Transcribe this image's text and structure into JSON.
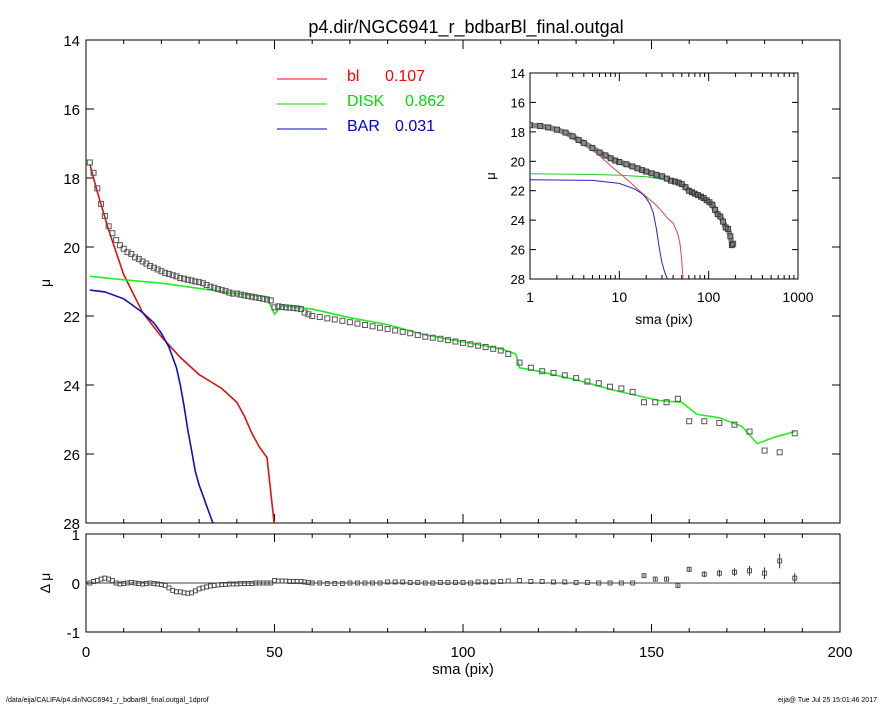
{
  "chart_data": {
    "type": "line",
    "title": "p4.dir/NGC6941_r_bdbarBl_final.outgal",
    "main": {
      "xlabel": "",
      "ylabel": "μ",
      "xlim": [
        0,
        200
      ],
      "ylim": [
        28,
        14
      ],
      "yticks": [
        "14",
        "16",
        "18",
        "20",
        "22",
        "24",
        "26",
        "28"
      ],
      "legend": [
        {
          "name": "bl",
          "value": "0.107",
          "color": "#ff0000"
        },
        {
          "name": "DISK",
          "value": "0.862",
          "color": "#00dd00"
        },
        {
          "name": "BAR",
          "value": "0.031",
          "color": "#0000cc"
        }
      ],
      "series": [
        {
          "name": "bl",
          "color": "#dd1111",
          "x": [
            1,
            3,
            6,
            10,
            15,
            20,
            25,
            30,
            33,
            36,
            38,
            40,
            42,
            44,
            45,
            46,
            48,
            50
          ],
          "y": [
            17.6,
            18.4,
            19.5,
            20.8,
            21.9,
            22.6,
            23.2,
            23.7,
            23.9,
            24.1,
            24.3,
            24.5,
            24.9,
            25.4,
            25.6,
            25.8,
            26.1,
            28.1
          ]
        },
        {
          "name": "DISK",
          "color": "#22ee22",
          "x": [
            1,
            10,
            20,
            30,
            40,
            48,
            50,
            52,
            60,
            70,
            80,
            90,
            100,
            110,
            114,
            115,
            120,
            130,
            140,
            148,
            152,
            158,
            162,
            168,
            174,
            178,
            183,
            188
          ],
          "y": [
            20.85,
            20.95,
            21.05,
            21.2,
            21.35,
            21.45,
            21.95,
            21.7,
            21.8,
            22.05,
            22.25,
            22.55,
            22.75,
            22.95,
            23.1,
            23.5,
            23.6,
            23.85,
            24.15,
            24.35,
            24.45,
            24.5,
            24.85,
            24.95,
            25.2,
            25.7,
            25.5,
            25.35
          ]
        },
        {
          "name": "BAR",
          "color": "#1111bb",
          "x": [
            1,
            5,
            10,
            15,
            18,
            20,
            22,
            24,
            25,
            26,
            27,
            28,
            29,
            30,
            31,
            32,
            33,
            34
          ],
          "y": [
            21.25,
            21.3,
            21.5,
            21.9,
            22.2,
            22.5,
            22.9,
            23.5,
            24.0,
            24.6,
            25.3,
            25.9,
            26.5,
            26.9,
            27.2,
            27.5,
            27.8,
            28.1
          ]
        },
        {
          "name": "data",
          "marker": "square",
          "x": [
            1,
            2,
            3,
            4,
            5,
            6,
            7,
            8,
            9,
            10,
            11,
            12,
            13,
            14,
            15,
            16,
            17,
            18,
            19,
            20,
            21,
            22,
            23,
            24,
            25,
            26,
            27,
            28,
            29,
            30,
            31,
            32,
            33,
            34,
            35,
            36,
            37,
            38,
            39,
            40,
            41,
            42,
            43,
            44,
            45,
            46,
            47,
            48,
            49,
            50,
            51,
            52,
            53,
            54,
            55,
            56,
            57,
            58,
            59,
            60,
            62,
            64,
            66,
            68,
            70,
            72,
            74,
            76,
            78,
            80,
            82,
            84,
            86,
            88,
            90,
            92,
            94,
            96,
            98,
            100,
            102,
            104,
            106,
            108,
            110,
            112,
            115,
            118,
            121,
            124,
            127,
            130,
            133,
            136,
            139,
            142,
            145,
            148,
            151,
            154,
            157,
            160,
            164,
            168,
            172,
            176,
            180,
            184,
            188
          ],
          "y": [
            17.55,
            17.85,
            18.3,
            18.75,
            19.1,
            19.4,
            19.6,
            19.8,
            19.95,
            20.05,
            20.15,
            20.2,
            20.3,
            20.35,
            20.42,
            20.48,
            20.55,
            20.6,
            20.65,
            20.7,
            20.75,
            20.78,
            20.82,
            20.85,
            20.9,
            20.92,
            20.95,
            20.97,
            21.0,
            21.02,
            21.05,
            21.1,
            21.15,
            21.18,
            21.22,
            21.25,
            21.28,
            21.32,
            21.35,
            21.35,
            21.38,
            21.4,
            21.42,
            21.44,
            21.46,
            21.48,
            21.5,
            21.52,
            21.55,
            21.75,
            21.72,
            21.74,
            21.75,
            21.76,
            21.77,
            21.78,
            21.8,
            21.9,
            21.95,
            22.0,
            22.03,
            22.07,
            22.1,
            22.14,
            22.18,
            22.22,
            22.26,
            22.3,
            22.34,
            22.38,
            22.42,
            22.46,
            22.5,
            22.55,
            22.6,
            22.63,
            22.66,
            22.7,
            22.74,
            22.78,
            22.82,
            22.86,
            22.9,
            22.95,
            23.0,
            23.1,
            23.35,
            23.5,
            23.6,
            23.65,
            23.72,
            23.8,
            23.9,
            23.95,
            24.05,
            24.1,
            24.2,
            24.5,
            24.5,
            24.5,
            24.4,
            25.05,
            25.05,
            25.1,
            25.15,
            25.35,
            25.9,
            25.95,
            25.4
          ]
        }
      ]
    },
    "residual": {
      "xlabel": "sma (pix)",
      "ylabel": "Δ μ",
      "xlim": [
        0,
        200
      ],
      "ylim": [
        -1,
        1
      ],
      "xticks": [
        "0",
        "50",
        "100",
        "150",
        "200"
      ],
      "yticks": [
        "-1",
        "0",
        "1"
      ],
      "x": [
        1,
        2,
        3,
        4,
        5,
        6,
        7,
        8,
        9,
        10,
        11,
        12,
        13,
        14,
        15,
        16,
        17,
        18,
        19,
        20,
        21,
        22,
        23,
        24,
        25,
        26,
        27,
        28,
        29,
        30,
        31,
        32,
        33,
        34,
        35,
        36,
        37,
        38,
        39,
        40,
        41,
        42,
        43,
        44,
        45,
        46,
        47,
        48,
        49,
        50,
        51,
        52,
        53,
        54,
        55,
        56,
        57,
        58,
        59,
        60,
        62,
        64,
        66,
        68,
        70,
        72,
        74,
        76,
        78,
        80,
        82,
        84,
        86,
        88,
        90,
        92,
        94,
        96,
        98,
        100,
        102,
        104,
        106,
        108,
        110,
        112,
        115,
        118,
        121,
        124,
        127,
        130,
        133,
        136,
        139,
        142,
        145,
        148,
        151,
        154,
        157,
        160,
        164,
        168,
        172,
        176,
        180,
        184,
        188
      ],
      "y": [
        0.0,
        0.03,
        0.05,
        0.08,
        0.1,
        0.08,
        0.05,
        0.0,
        -0.02,
        -0.01,
        0.0,
        0.01,
        0.0,
        -0.01,
        -0.02,
        -0.01,
        0.0,
        -0.01,
        -0.02,
        -0.03,
        -0.05,
        -0.1,
        -0.15,
        -0.18,
        -0.18,
        -0.2,
        -0.21,
        -0.2,
        -0.16,
        -0.12,
        -0.1,
        -0.08,
        -0.06,
        -0.05,
        -0.04,
        -0.03,
        -0.03,
        -0.02,
        -0.02,
        -0.02,
        -0.01,
        -0.01,
        -0.01,
        -0.01,
        0.0,
        0.0,
        0.0,
        0.0,
        0.0,
        0.05,
        0.04,
        0.04,
        0.04,
        0.03,
        0.03,
        0.03,
        0.03,
        0.02,
        0.01,
        0.0,
        0.0,
        -0.01,
        -0.01,
        -0.01,
        0.0,
        0.0,
        0.0,
        0.0,
        0.0,
        0.02,
        0.02,
        0.02,
        0.01,
        0.01,
        0.0,
        0.0,
        0.01,
        0.01,
        0.01,
        0.01,
        0.0,
        0.02,
        0.02,
        0.02,
        0.03,
        0.04,
        0.05,
        0.03,
        0.03,
        0.02,
        0.02,
        0.01,
        0.01,
        0.0,
        0.0,
        0.0,
        0.0,
        0.15,
        0.08,
        0.08,
        -0.05,
        0.28,
        0.18,
        0.2,
        0.22,
        0.25,
        0.2,
        0.45,
        0.1
      ],
      "err": [
        0.01,
        0.01,
        0.01,
        0.01,
        0.01,
        0.01,
        0.01,
        0.01,
        0.01,
        0.01,
        0.01,
        0.01,
        0.01,
        0.01,
        0.01,
        0.01,
        0.01,
        0.01,
        0.01,
        0.01,
        0.01,
        0.01,
        0.01,
        0.01,
        0.01,
        0.01,
        0.01,
        0.01,
        0.01,
        0.01,
        0.01,
        0.01,
        0.01,
        0.01,
        0.01,
        0.01,
        0.01,
        0.01,
        0.01,
        0.01,
        0.01,
        0.01,
        0.01,
        0.01,
        0.01,
        0.01,
        0.01,
        0.01,
        0.01,
        0.01,
        0.01,
        0.01,
        0.01,
        0.01,
        0.01,
        0.01,
        0.01,
        0.01,
        0.01,
        0.01,
        0.01,
        0.01,
        0.01,
        0.01,
        0.01,
        0.01,
        0.01,
        0.01,
        0.01,
        0.01,
        0.01,
        0.01,
        0.01,
        0.01,
        0.01,
        0.01,
        0.01,
        0.01,
        0.01,
        0.01,
        0.01,
        0.01,
        0.01,
        0.01,
        0.01,
        0.01,
        0.02,
        0.02,
        0.02,
        0.02,
        0.02,
        0.02,
        0.02,
        0.02,
        0.02,
        0.02,
        0.02,
        0.03,
        0.03,
        0.03,
        0.04,
        0.05,
        0.06,
        0.07,
        0.08,
        0.1,
        0.12,
        0.15,
        0.1
      ]
    },
    "inset": {
      "xlabel": "sma (pix)",
      "ylabel": "μ",
      "xscale": "log",
      "xlim": [
        1,
        1000
      ],
      "ylim": [
        28,
        14
      ],
      "xticks": [
        "1",
        "10",
        "100",
        "1000"
      ],
      "yticks": [
        "14",
        "16",
        "18",
        "20",
        "22",
        "24",
        "26",
        "28"
      ],
      "series": [
        {
          "name": "bl",
          "color": "#ee4444",
          "x": [
            1,
            2,
            3,
            5,
            8,
            12,
            16,
            20,
            25,
            30,
            35,
            40,
            45,
            48,
            50,
            52
          ],
          "y": [
            17.6,
            17.8,
            18.3,
            19.2,
            20.3,
            21.2,
            21.9,
            22.4,
            22.9,
            23.4,
            23.9,
            24.2,
            24.9,
            25.7,
            26.8,
            28.2
          ]
        },
        {
          "name": "DISK",
          "color": "#22cc22",
          "x": [
            1,
            5,
            10,
            20,
            40,
            60,
            100,
            150,
            188
          ],
          "y": [
            20.85,
            20.9,
            20.95,
            21.05,
            21.35,
            21.8,
            22.75,
            24.0,
            25.35
          ]
        },
        {
          "name": "BAR",
          "color": "#2222cc",
          "x": [
            1,
            5,
            10,
            15,
            18,
            20,
            22,
            24,
            26,
            28,
            30,
            32,
            34,
            36
          ],
          "y": [
            21.25,
            21.3,
            21.5,
            21.9,
            22.2,
            22.5,
            22.9,
            23.5,
            24.6,
            25.9,
            26.9,
            27.5,
            27.9,
            28.2
          ]
        },
        {
          "name": "data",
          "marker": "square",
          "x": [
            1,
            1.3,
            1.6,
            2,
            2.5,
            3,
            3.5,
            4,
            5,
            6,
            7,
            8,
            9,
            10,
            12,
            14,
            16,
            18,
            20,
            23,
            26,
            30,
            34,
            38,
            42,
            46,
            50,
            55,
            60,
            65,
            70,
            76,
            82,
            88,
            95,
            102,
            110,
            118,
            126,
            135,
            145,
            155,
            165,
            175,
            182,
            188
          ],
          "y": [
            17.55,
            17.6,
            17.7,
            17.85,
            18.05,
            18.3,
            18.55,
            18.75,
            19.1,
            19.4,
            19.6,
            19.8,
            19.95,
            20.05,
            20.2,
            20.35,
            20.48,
            20.6,
            20.7,
            20.82,
            20.92,
            21.02,
            21.18,
            21.32,
            21.38,
            21.45,
            21.55,
            21.76,
            22.0,
            22.1,
            22.2,
            22.3,
            22.4,
            22.5,
            22.65,
            22.78,
            22.95,
            23.3,
            23.6,
            23.75,
            24.1,
            24.5,
            24.6,
            25.1,
            25.7,
            25.6
          ]
        }
      ]
    }
  },
  "footer": {
    "left": "/data/eija/CALIFA/p4.dir/NGC6941_r_bdbarBl_final.outgal_1dprof",
    "right": "eija@  Tue Jul 25 15:01:46 2017"
  }
}
